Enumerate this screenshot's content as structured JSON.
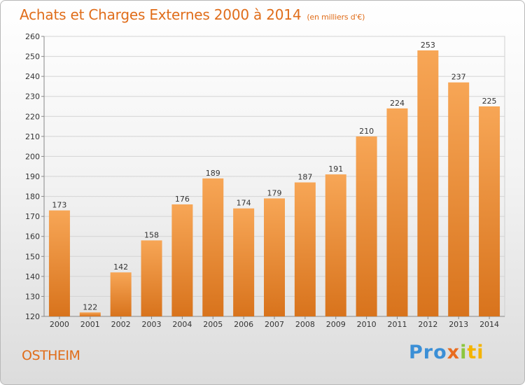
{
  "header": {
    "title": "Achats et Charges Externes 2000 à 2014",
    "subtitle": "(en milliers d'€)"
  },
  "footer": {
    "city": "OSTHEIM",
    "logo": [
      "Pro",
      "x",
      "i",
      "ti"
    ]
  },
  "colors": {
    "bar_top": "#f7a656",
    "bar_bottom": "#d8731c",
    "title": "#e06d1a"
  },
  "chart_data": {
    "type": "bar",
    "title": "Achats et Charges Externes 2000 à 2014",
    "subtitle": "(en milliers d'€)",
    "categories": [
      "2000",
      "2001",
      "2002",
      "2003",
      "2004",
      "2005",
      "2006",
      "2007",
      "2008",
      "2009",
      "2010",
      "2011",
      "2012",
      "2013",
      "2014"
    ],
    "values": [
      173,
      122,
      142,
      158,
      176,
      189,
      174,
      179,
      187,
      191,
      210,
      224,
      253,
      237,
      225
    ],
    "ylim": [
      120,
      260
    ],
    "yticks": [
      120,
      130,
      140,
      150,
      160,
      170,
      180,
      190,
      200,
      210,
      220,
      230,
      240,
      250,
      260
    ],
    "grid": true,
    "xlabel": "",
    "ylabel": ""
  }
}
